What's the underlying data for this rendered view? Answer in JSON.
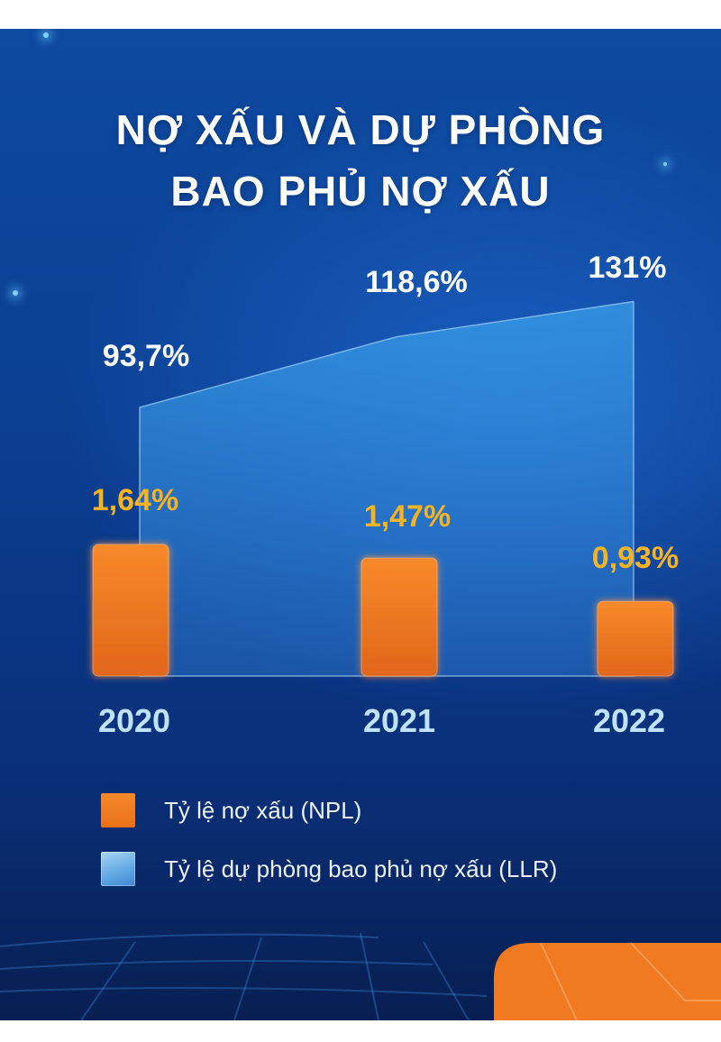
{
  "title": {
    "line1": "NỢ XẤU VÀ DỰ PHÒNG",
    "line2": "BAO PHỦ NỢ XẤU"
  },
  "colors": {
    "npl_bar": "#f08224",
    "npl_label": "#f7b321",
    "llr_area": "#4aa6e6",
    "llr_label": "#ffffff",
    "year_label": "#bfe3ff",
    "background": "#0b3f92"
  },
  "chart_data": {
    "type": "bar",
    "categories": [
      "2020",
      "2021",
      "2022"
    ],
    "series": [
      {
        "name": "Tỷ lệ nợ xấu (NPL)",
        "type": "bar",
        "values": [
          1.64,
          1.47,
          0.93
        ],
        "labels": [
          "1,64%",
          "1,47%",
          "0,93%"
        ]
      },
      {
        "name": "Tỷ lệ dự phòng bao phủ nợ xấu (LLR)",
        "type": "area",
        "values": [
          93.7,
          118.6,
          131
        ],
        "labels": [
          "93,7%",
          "118,6%",
          "131%"
        ]
      }
    ]
  },
  "legend": [
    {
      "key": "npl",
      "label": "Tỷ lệ nợ xấu (NPL)"
    },
    {
      "key": "llr",
      "label": "Tỷ lệ dự phòng bao phủ nợ xấu (LLR)"
    }
  ]
}
